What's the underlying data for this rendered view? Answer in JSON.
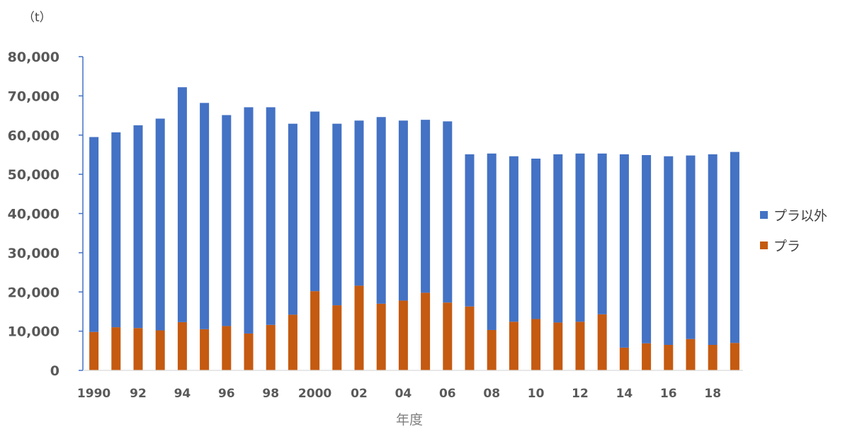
{
  "chart_data": {
    "type": "bar",
    "stacked": true,
    "unit_label": "（t）",
    "xlabel": "年度",
    "ylabel": "",
    "ylim": [
      0,
      80000
    ],
    "yticks": [
      "0",
      "10,000",
      "20,000",
      "30,000",
      "40,000",
      "50,000",
      "60,000",
      "70,000",
      "80,000"
    ],
    "categories": [
      "1990",
      "91",
      "92",
      "93",
      "94",
      "95",
      "96",
      "97",
      "98",
      "99",
      "2000",
      "01",
      "02",
      "03",
      "04",
      "05",
      "06",
      "07",
      "08",
      "09",
      "10",
      "11",
      "12",
      "13",
      "14",
      "15",
      "16",
      "17",
      "18",
      "19"
    ],
    "x_tick_labels": [
      "1990",
      "",
      "92",
      "",
      "94",
      "",
      "96",
      "",
      "98",
      "",
      "2000",
      "",
      "02",
      "",
      "04",
      "",
      "06",
      "",
      "08",
      "",
      "10",
      "",
      "12",
      "",
      "14",
      "",
      "16",
      "",
      "18",
      ""
    ],
    "legend_position": "right",
    "series": [
      {
        "name": "プラ",
        "color": "#c55a11",
        "values": [
          9800,
          11000,
          10800,
          10200,
          12300,
          10500,
          11300,
          9400,
          11600,
          14200,
          20200,
          16600,
          21600,
          17000,
          17800,
          19800,
          17300,
          16300,
          10300,
          12400,
          13100,
          12200,
          12400,
          14300,
          5800,
          6900,
          6500,
          8000,
          6500,
          7000
        ]
      },
      {
        "name": "プラ以外",
        "color": "#4472c4",
        "values": [
          49700,
          49700,
          51700,
          54000,
          59900,
          57700,
          53800,
          57700,
          55500,
          48700,
          45800,
          46300,
          42100,
          47600,
          45900,
          44100,
          46200,
          38800,
          45000,
          42200,
          40900,
          42900,
          42900,
          41000,
          49300,
          48000,
          48100,
          46800,
          48600,
          48700
        ]
      }
    ]
  }
}
